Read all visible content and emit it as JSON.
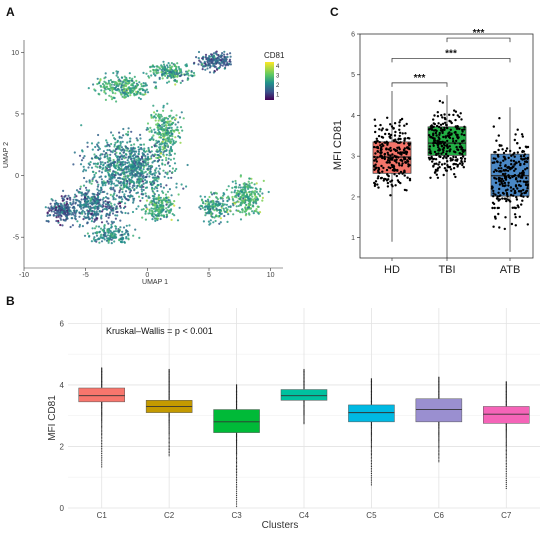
{
  "panels": {
    "A": {
      "letter": "A",
      "chart_data": {
        "type": "scatter",
        "xlabel": "UMAP 1",
        "ylabel": "UMAP 2",
        "x_ticks": [
          -10,
          -5,
          0,
          5,
          10
        ],
        "y_ticks": [
          -5,
          0,
          5,
          10
        ],
        "xlim": [
          -10,
          11
        ],
        "ylim": [
          -7.5,
          11
        ],
        "legend": {
          "title": "CD81",
          "position": "top-right",
          "ticks": [
            4,
            3,
            2,
            1
          ]
        },
        "color_scale": {
          "low": "#440154",
          "mid": "#21918c",
          "high": "#fde725"
        }
      }
    },
    "B": {
      "letter": "B",
      "annotation": "Kruskal–Wallis = p < 0.001",
      "chart_data": {
        "type": "boxplot",
        "xlabel": "Clusters",
        "ylabel": "MFI CD81",
        "ylim": [
          0,
          6.5
        ],
        "y_ticks": [
          0,
          2,
          4,
          6
        ],
        "categories": [
          "C1",
          "C2",
          "C3",
          "C4",
          "C5",
          "C6",
          "C7"
        ],
        "colors": [
          "#f8766d",
          "#c49a00",
          "#00ba38",
          "#00c19f",
          "#00b9e3",
          "#9a8fd0",
          "#f564b8"
        ],
        "boxes": [
          {
            "min": 1.3,
            "q1": 3.45,
            "median": 3.65,
            "q3": 3.9,
            "max": 4.55
          },
          {
            "min": 1.65,
            "q1": 3.1,
            "median": 3.3,
            "q3": 3.5,
            "max": 4.5
          },
          {
            "min": 0.05,
            "q1": 2.45,
            "median": 2.8,
            "q3": 3.2,
            "max": 4.0
          },
          {
            "min": 2.7,
            "q1": 3.5,
            "median": 3.65,
            "q3": 3.85,
            "max": 4.5
          },
          {
            "min": 0.75,
            "q1": 2.8,
            "median": 3.1,
            "q3": 3.35,
            "max": 4.2
          },
          {
            "min": 1.45,
            "q1": 2.8,
            "median": 3.2,
            "q3": 3.55,
            "max": 4.25
          },
          {
            "min": 0.6,
            "q1": 2.75,
            "median": 3.05,
            "q3": 3.3,
            "max": 4.1
          }
        ],
        "grid": true,
        "legend": "none"
      }
    },
    "C": {
      "letter": "C",
      "chart_data": {
        "type": "boxplot",
        "xlabel": "",
        "ylabel": "MFI CD81",
        "ylim": [
          0.5,
          6
        ],
        "y_ticks": [
          1,
          2,
          3,
          4,
          5,
          6
        ],
        "categories": [
          "HD",
          "TBI",
          "ATB"
        ],
        "colors": [
          "#f4756a",
          "#22b045",
          "#4a88c6"
        ],
        "boxes": [
          {
            "min": 0.9,
            "q1": 2.58,
            "median": 2.98,
            "q3": 3.35,
            "max": 4.6
          },
          {
            "min": 0.5,
            "q1": 3.02,
            "median": 3.32,
            "q3": 3.72,
            "max": 4.5
          },
          {
            "min": 0.65,
            "q1": 2.02,
            "median": 2.52,
            "q3": 3.05,
            "max": 4.2
          }
        ],
        "significance": [
          {
            "from": "HD",
            "to": "TBI",
            "label": "***",
            "y": 4.8
          },
          {
            "from": "HD",
            "to": "ATB",
            "label": "***",
            "y": 5.4
          },
          {
            "from": "TBI",
            "to": "ATB",
            "label": "***",
            "y": 5.9
          }
        ],
        "grid": false,
        "legend": "none"
      }
    }
  }
}
